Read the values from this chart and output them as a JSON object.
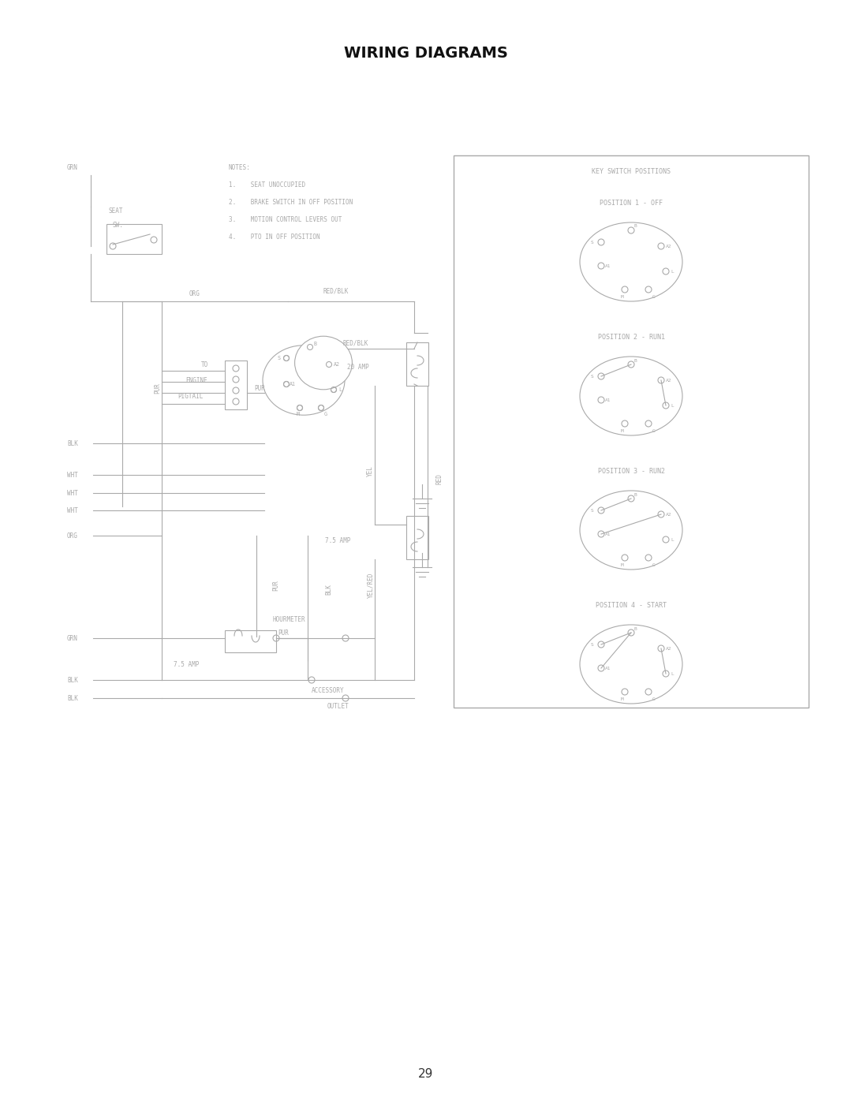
{
  "title": "WIRING DIAGRAMS",
  "page_number": "29",
  "bg_color": "#ffffff",
  "line_color": "#aaaaaa",
  "text_color": "#aaaaaa",
  "title_color": "#111111",
  "notes": [
    "NOTES:",
    "1.    SEAT UNOCCUPIED",
    "2.    BRAKE SWITCH IN OFF POSITION",
    "3.    MOTION CONTROL LEVERS OUT",
    "4.    PTO IN OFF POSITION"
  ],
  "key_switch_title": "KEY SWITCH POSITIONS",
  "positions": [
    {
      "label": "POSITION 1 - OFF",
      "connections": []
    },
    {
      "label": "POSITION 2 - RUN1",
      "connections": [
        [
          "S",
          "B"
        ],
        [
          "A2",
          "L"
        ]
      ]
    },
    {
      "label": "POSITION 3 - RUN2",
      "connections": [
        [
          "S",
          "B"
        ],
        [
          "A1",
          "A2"
        ]
      ]
    },
    {
      "label": "POSITION 4 - START",
      "connections": [
        [
          "S",
          "B"
        ],
        [
          "A2",
          "L"
        ],
        [
          "B",
          "A1"
        ]
      ]
    }
  ],
  "wire_labels": {
    "grn_top": "GRN",
    "org": "ORG",
    "red_blk_top": "RED/BLK",
    "red_blk_mid": "RED/BLK",
    "pur_left": "PUR",
    "pur_mid": "PUR",
    "pur_bot": "PUR",
    "blk_left": "BLK",
    "wht1": "WHT",
    "wht2": "WHT",
    "wht3": "WHT",
    "org_bot": "ORG",
    "grn_bot": "GRN",
    "blk_bot1": "BLK",
    "blk_bot2": "BLK",
    "yel": "YEL",
    "yel_red": "YEL/RED",
    "red": "RED",
    "blk_right": "BLK",
    "amp20": "20 AMP",
    "amp75_top": "7.5 AMP",
    "amp75_bot": "7.5 AMP",
    "hourmeter": "HOURMETER",
    "accessory": "ACCESSORY\nOUTLET",
    "to_engine": "TO\nENGINE\nPIGTAIL"
  }
}
